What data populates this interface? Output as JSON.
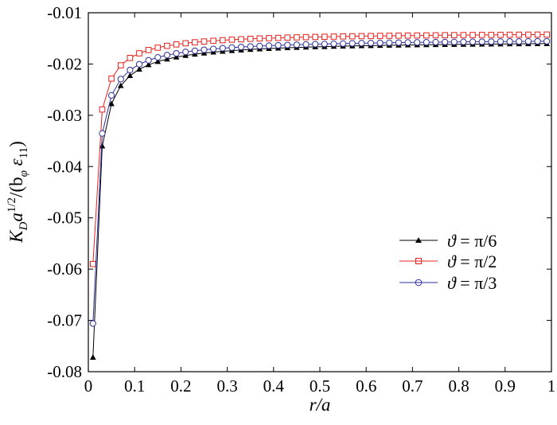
{
  "chart_data": {
    "type": "line",
    "title": "",
    "xlabel": "r/a",
    "ylabel_parts": {
      "main": "K",
      "sub1": "D",
      "a": "a",
      "sup": "1/2",
      "tail": "/(b",
      "sub2": "φ",
      "eps": " ε",
      "sub3": "11",
      "close": ")"
    },
    "xlim": [
      0,
      1
    ],
    "ylim": [
      -0.08,
      -0.01
    ],
    "xticks": [
      0,
      0.1,
      0.2,
      0.3,
      0.4,
      0.5,
      0.6,
      0.7,
      0.8,
      0.9,
      1
    ],
    "xtick_labels": [
      "0",
      "0.1",
      "0.2",
      "0.3",
      "0.4",
      "0.5",
      "0.6",
      "0.7",
      "0.8",
      "0.9",
      "1"
    ],
    "yticks": [
      -0.08,
      -0.07,
      -0.06,
      -0.05,
      -0.04,
      -0.03,
      -0.02,
      -0.01
    ],
    "ytick_labels": [
      "-0.08",
      "-0.07",
      "-0.06",
      "-0.05",
      "-0.04",
      "-0.03",
      "-0.02",
      "-0.01"
    ],
    "grid": false,
    "legend_position": "center-right",
    "x": [
      0.01,
      0.03,
      0.05,
      0.07,
      0.09,
      0.11,
      0.13,
      0.15,
      0.17,
      0.19,
      0.21,
      0.23,
      0.25,
      0.27,
      0.29,
      0.31,
      0.33,
      0.35,
      0.37,
      0.39,
      0.41,
      0.43,
      0.45,
      0.47,
      0.49,
      0.51,
      0.53,
      0.55,
      0.57,
      0.59,
      0.61,
      0.63,
      0.65,
      0.67,
      0.69,
      0.71,
      0.73,
      0.75,
      0.77,
      0.79,
      0.81,
      0.83,
      0.85,
      0.87,
      0.89,
      0.91,
      0.93,
      0.95,
      0.97,
      0.99
    ],
    "series": [
      {
        "name": "ϑ = π/6",
        "label_var": "ϑ",
        "label_rest": " = π/6",
        "color": "#000000",
        "marker": "triangle",
        "model": {
          "a": -0.0154,
          "b": 0.000618
        }
      },
      {
        "name": "ϑ = π/2",
        "label_var": "ϑ",
        "label_rest": " = π/2",
        "color": "#e8201c",
        "marker": "square",
        "model": {
          "a": -0.0138,
          "b": 0.000452
        }
      },
      {
        "name": "ϑ = π/3",
        "label_var": "ϑ",
        "label_rest": " = π/3",
        "color": "#2b2f9a",
        "marker": "circle",
        "model": {
          "a": -0.015,
          "b": 0.000556
        }
      }
    ]
  }
}
